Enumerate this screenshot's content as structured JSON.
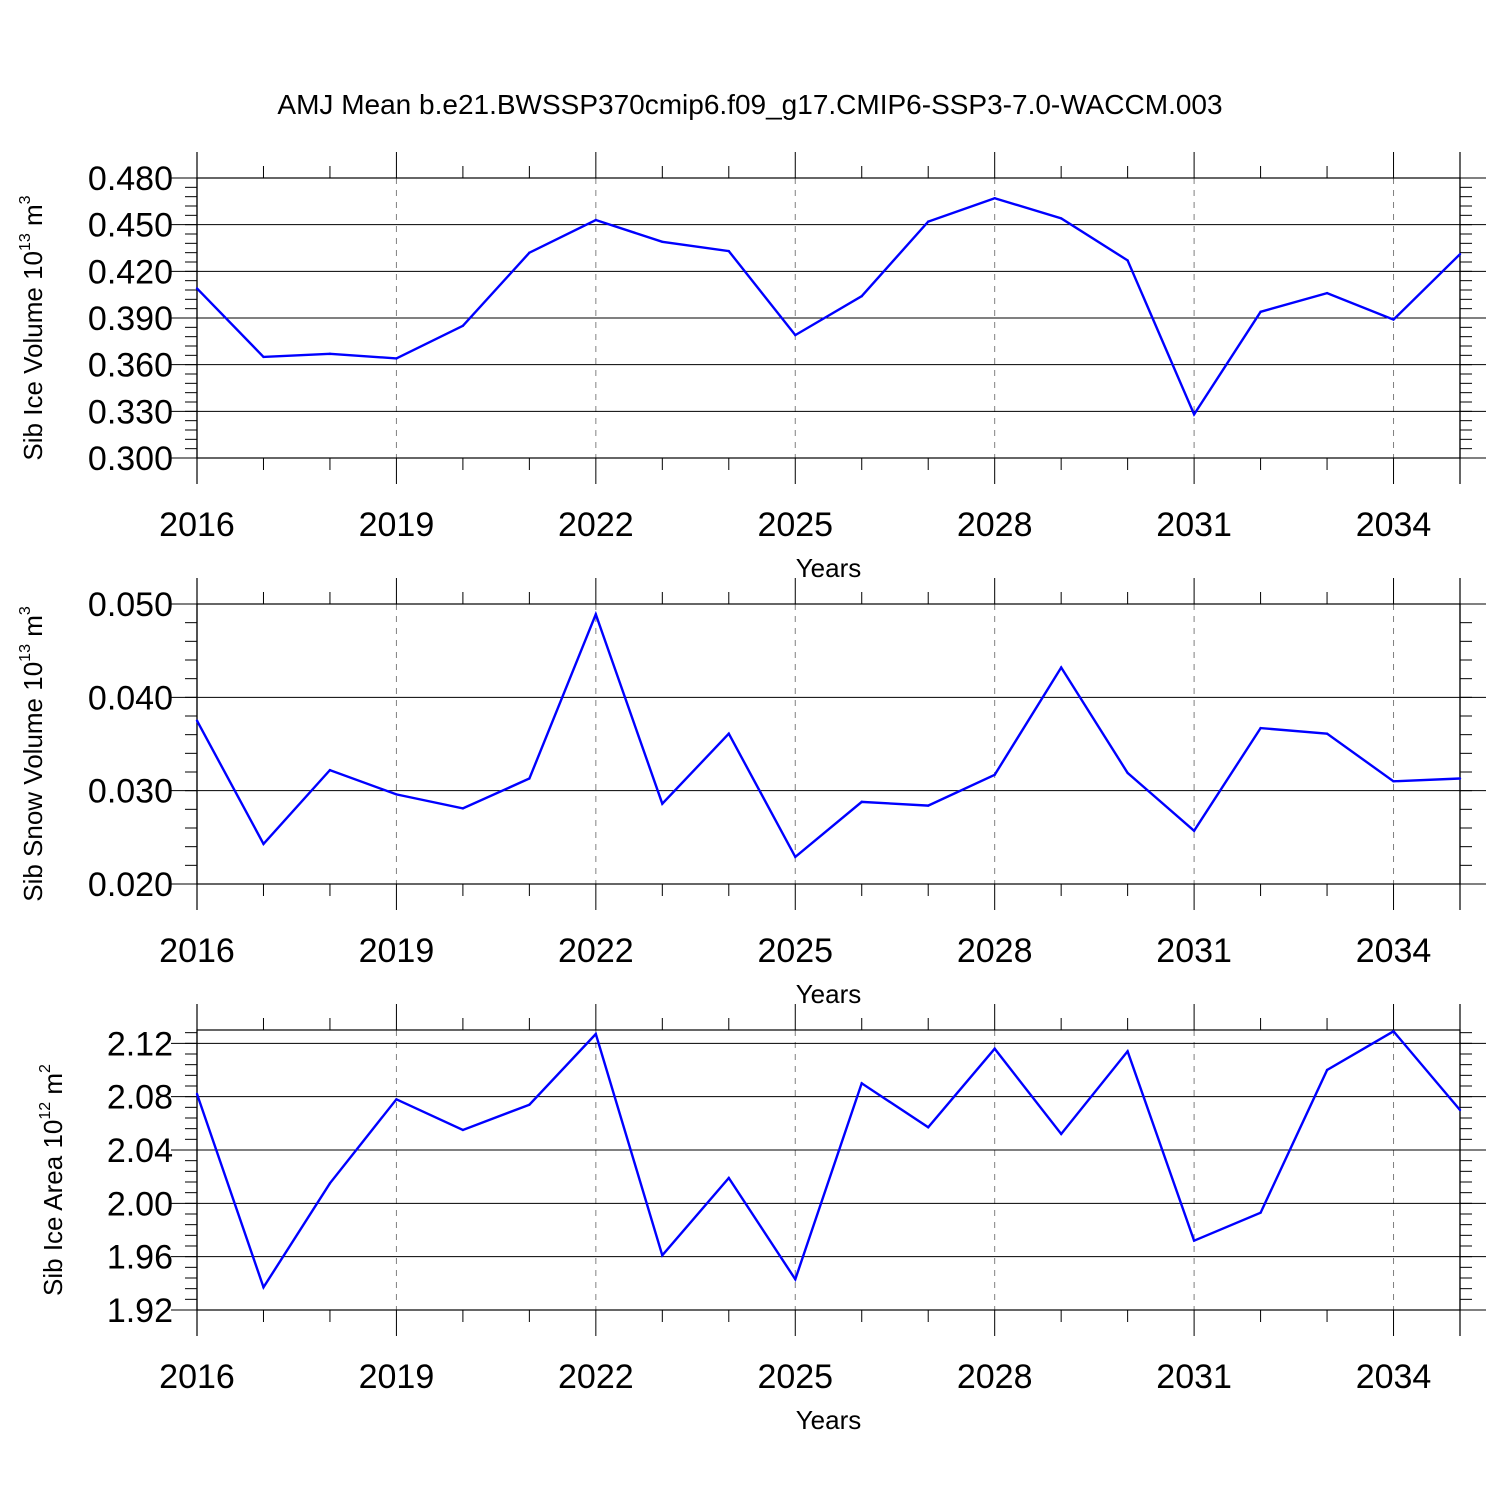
{
  "title": "AMJ Mean b.e21.BWSSP370cmip6.f09_g17.CMIP6-SSP3-7.0-WACCM.003",
  "colors": {
    "series": "#0000ff",
    "frame": "#000000",
    "grid": "#808080"
  },
  "chart_data": [
    {
      "type": "line",
      "ylabel": {
        "text": "Sib Ice Volume 10",
        "sup": "13",
        "unit": " m",
        "unit_sup": "3"
      },
      "xlabel": "Years",
      "xlim": [
        2016,
        2035
      ],
      "ylim": [
        0.3,
        0.48
      ],
      "xticks": [
        2016,
        2019,
        2022,
        2025,
        2028,
        2031,
        2034
      ],
      "xtick_labels": [
        "2016",
        "2019",
        "2022",
        "2025",
        "2028",
        "2031",
        "2034"
      ],
      "yticks": [
        0.3,
        0.33,
        0.36,
        0.39,
        0.42,
        0.45,
        0.48
      ],
      "ytick_labels": [
        "0.300",
        "0.330",
        "0.360",
        "0.390",
        "0.420",
        "0.450",
        "0.480"
      ],
      "ygrid": true,
      "xgrid": "dashed",
      "series": [
        {
          "x": [
            2016,
            2017,
            2018,
            2019,
            2020,
            2021,
            2022,
            2023,
            2024,
            2025,
            2026,
            2027,
            2028,
            2029,
            2030,
            2031,
            2032,
            2033,
            2034,
            2035
          ],
          "values": [
            0.409,
            0.365,
            0.367,
            0.364,
            0.385,
            0.432,
            0.453,
            0.439,
            0.433,
            0.379,
            0.404,
            0.452,
            0.467,
            0.454,
            0.427,
            0.328,
            0.394,
            0.406,
            0.389,
            0.431
          ]
        }
      ]
    },
    {
      "type": "line",
      "ylabel": {
        "text": "Sib Snow Volume 10",
        "sup": "13",
        "unit": " m",
        "unit_sup": "3"
      },
      "xlabel": "Years",
      "xlim": [
        2016,
        2035
      ],
      "ylim": [
        0.02,
        0.05
      ],
      "xticks": [
        2016,
        2019,
        2022,
        2025,
        2028,
        2031,
        2034
      ],
      "xtick_labels": [
        "2016",
        "2019",
        "2022",
        "2025",
        "2028",
        "2031",
        "2034"
      ],
      "yticks": [
        0.02,
        0.03,
        0.04,
        0.05
      ],
      "ytick_labels": [
        "0.020",
        "0.030",
        "0.040",
        "0.050"
      ],
      "ygrid": true,
      "xgrid": "dashed",
      "series": [
        {
          "x": [
            2016,
            2017,
            2018,
            2019,
            2020,
            2021,
            2022,
            2023,
            2024,
            2025,
            2026,
            2027,
            2028,
            2029,
            2030,
            2031,
            2032,
            2033,
            2034,
            2035
          ],
          "values": [
            0.0375,
            0.0243,
            0.0322,
            0.0296,
            0.0281,
            0.0313,
            0.0489,
            0.0286,
            0.0361,
            0.0229,
            0.0288,
            0.0284,
            0.0317,
            0.0432,
            0.0319,
            0.0257,
            0.0367,
            0.0361,
            0.031,
            0.0313
          ]
        }
      ]
    },
    {
      "type": "line",
      "ylabel": {
        "text": "Sib Ice Area 10",
        "sup": "12",
        "unit": " m",
        "unit_sup": "2"
      },
      "xlabel": "Years",
      "xlim": [
        2016,
        2035
      ],
      "ylim": [
        1.92,
        2.13
      ],
      "xticks": [
        2016,
        2019,
        2022,
        2025,
        2028,
        2031,
        2034
      ],
      "xtick_labels": [
        "2016",
        "2019",
        "2022",
        "2025",
        "2028",
        "2031",
        "2034"
      ],
      "yticks": [
        1.92,
        1.96,
        2.0,
        2.04,
        2.08,
        2.12
      ],
      "ytick_labels": [
        "1.92",
        "1.96",
        "2.00",
        "2.04",
        "2.08",
        "2.12"
      ],
      "ygrid": true,
      "xgrid": "dashed",
      "series": [
        {
          "x": [
            2016,
            2017,
            2018,
            2019,
            2020,
            2021,
            2022,
            2023,
            2024,
            2025,
            2026,
            2027,
            2028,
            2029,
            2030,
            2031,
            2032,
            2033,
            2034,
            2035
          ],
          "values": [
            2.082,
            1.937,
            2.015,
            2.078,
            2.055,
            2.074,
            2.127,
            1.961,
            2.019,
            1.943,
            2.09,
            2.057,
            2.116,
            2.052,
            2.114,
            1.972,
            1.993,
            2.1,
            2.129,
            2.07
          ]
        }
      ]
    }
  ]
}
